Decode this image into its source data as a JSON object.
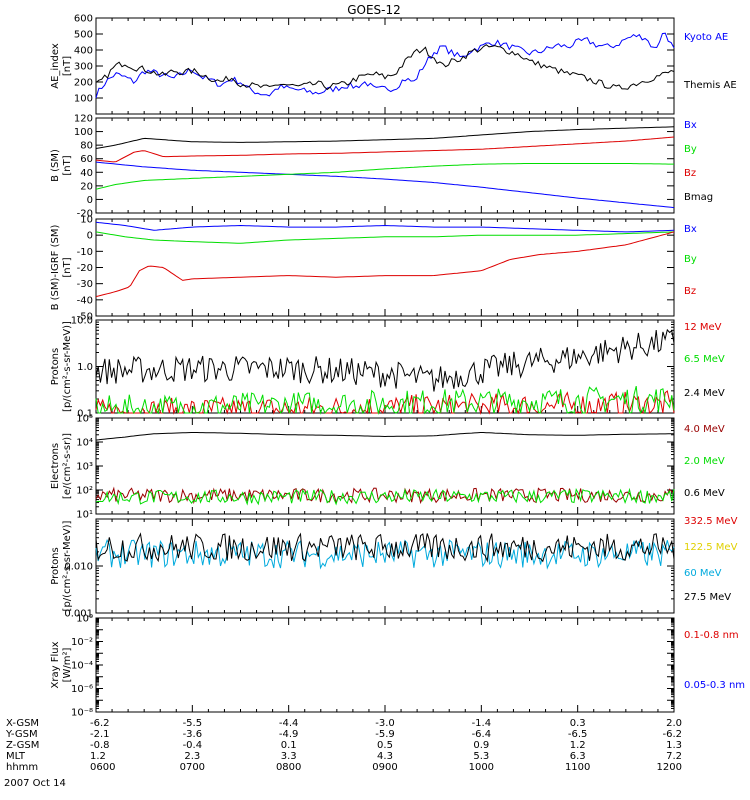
{
  "title": "GOES-12",
  "date_label": "2007 Oct 14",
  "colors": {
    "black": "#000000",
    "blue": "#0000ff",
    "red": "#dd0000",
    "green": "#00dd00",
    "cyan": "#00aadd",
    "yellow": "#eeee00",
    "darkred": "#990000"
  },
  "chart_data": [
    {
      "type": "line",
      "panel": "ae",
      "ylabel": [
        "AE_index",
        "[nT]"
      ],
      "ylim": [
        0,
        600
      ],
      "yticks": [
        100,
        200,
        300,
        400,
        500,
        600
      ],
      "scale": "linear",
      "series": [
        {
          "name": "Kyoto AE",
          "color": "#0000ff",
          "x": [
            6.0,
            6.1,
            6.2,
            6.3,
            6.4,
            6.5,
            6.6,
            6.7,
            6.8,
            6.9,
            7.0,
            7.1,
            7.2,
            7.3,
            7.4,
            7.5,
            7.6,
            7.7,
            7.8,
            7.9,
            8.0,
            8.1,
            8.2,
            8.3,
            8.4,
            8.5,
            8.6,
            8.7,
            8.8,
            8.9,
            9.0,
            9.1,
            9.2,
            9.3,
            9.4,
            9.5,
            9.6,
            9.7,
            9.8,
            9.9,
            10.0,
            10.1,
            10.2,
            10.3,
            10.4,
            10.5,
            10.6,
            10.7,
            10.8,
            10.9,
            11.0,
            11.1,
            11.2,
            11.3,
            11.4,
            11.5,
            11.6,
            11.7,
            11.8,
            11.9,
            12.0
          ],
          "y": [
            120,
            200,
            250,
            230,
            200,
            270,
            260,
            240,
            220,
            250,
            280,
            230,
            210,
            180,
            220,
            200,
            150,
            130,
            120,
            170,
            160,
            150,
            140,
            130,
            150,
            160,
            180,
            170,
            200,
            150,
            160,
            160,
            220,
            200,
            300,
            380,
            420,
            380,
            350,
            400,
            420,
            450,
            440,
            420,
            400,
            380,
            390,
            410,
            430,
            420,
            450,
            460,
            430,
            420,
            430,
            470,
            490,
            480,
            400,
            520,
            400
          ]
        },
        {
          "name": "Themis AE",
          "color": "#000000",
          "x": [
            6.0,
            6.1,
            6.2,
            6.3,
            6.4,
            6.5,
            6.6,
            6.7,
            6.8,
            6.9,
            7.0,
            7.1,
            7.2,
            7.3,
            7.4,
            7.5,
            7.6,
            7.7,
            7.8,
            7.9,
            8.0,
            8.1,
            8.2,
            8.3,
            8.4,
            8.5,
            8.6,
            8.7,
            8.8,
            8.9,
            9.0,
            9.1,
            9.2,
            9.3,
            9.4,
            9.5,
            9.6,
            9.7,
            9.8,
            9.9,
            10.0,
            10.1,
            10.2,
            10.3,
            10.4,
            10.5,
            10.6,
            10.7,
            10.8,
            10.9,
            11.0,
            11.1,
            11.2,
            11.3,
            11.4,
            11.5,
            11.6,
            11.7,
            11.8,
            11.9,
            12.0
          ],
          "y": [
            180,
            230,
            300,
            320,
            290,
            280,
            260,
            240,
            270,
            260,
            270,
            250,
            220,
            200,
            230,
            190,
            180,
            170,
            160,
            190,
            180,
            170,
            180,
            190,
            170,
            180,
            190,
            220,
            240,
            250,
            230,
            250,
            320,
            380,
            410,
            360,
            300,
            330,
            350,
            390,
            410,
            420,
            410,
            390,
            370,
            330,
            310,
            290,
            270,
            250,
            240,
            220,
            200,
            180,
            160,
            170,
            190,
            210,
            230,
            250,
            270
          ]
        }
      ],
      "legend": [
        "Kyoto AE",
        "Themis AE"
      ]
    },
    {
      "type": "line",
      "panel": "bsm",
      "ylabel": [
        "B (SM)",
        "[nT]"
      ],
      "ylim": [
        -20,
        120
      ],
      "yticks": [
        -20,
        0,
        20,
        40,
        60,
        80,
        100,
        120
      ],
      "scale": "linear",
      "series": [
        {
          "name": "Bx",
          "color": "#0000ff",
          "x": [
            6.0,
            6.5,
            7.0,
            7.5,
            8.0,
            8.5,
            9.0,
            9.5,
            10.0,
            10.5,
            11.0,
            11.5,
            12.0
          ],
          "y": [
            55,
            48,
            43,
            40,
            37,
            34,
            30,
            25,
            18,
            10,
            2,
            -5,
            -12
          ]
        },
        {
          "name": "By",
          "color": "#00dd00",
          "x": [
            6.0,
            6.2,
            6.5,
            7.0,
            7.5,
            8.0,
            8.5,
            9.0,
            9.5,
            10.0,
            10.5,
            11.0,
            11.5,
            12.0
          ],
          "y": [
            15,
            22,
            28,
            31,
            34,
            37,
            40,
            45,
            49,
            52,
            53,
            53,
            53,
            52
          ]
        },
        {
          "name": "Bz",
          "color": "#dd0000",
          "x": [
            6.0,
            6.2,
            6.4,
            6.5,
            6.7,
            7.0,
            7.5,
            8.0,
            8.5,
            9.0,
            9.5,
            10.0,
            10.5,
            11.0,
            11.5,
            12.0
          ],
          "y": [
            58,
            55,
            70,
            72,
            63,
            64,
            65,
            67,
            68,
            70,
            72,
            74,
            78,
            82,
            86,
            92
          ]
        },
        {
          "name": "Bmag",
          "color": "#000000",
          "x": [
            6.0,
            6.2,
            6.5,
            7.0,
            7.5,
            8.0,
            8.5,
            9.0,
            9.5,
            10.0,
            10.5,
            11.0,
            11.5,
            12.0
          ],
          "y": [
            75,
            80,
            90,
            85,
            84,
            85,
            86,
            88,
            90,
            95,
            100,
            103,
            105,
            107
          ]
        }
      ],
      "legend": [
        "Bx",
        "By",
        "Bz",
        "Bmag"
      ]
    },
    {
      "type": "line",
      "panel": "bsmigrf",
      "ylabel": [
        "B (SM)-IGRF (SM)",
        "[nT]"
      ],
      "ylim": [
        -50,
        10
      ],
      "yticks": [
        -50,
        -40,
        -30,
        -20,
        -10,
        0,
        10
      ],
      "scale": "linear",
      "series": [
        {
          "name": "Bx",
          "color": "#0000ff",
          "x": [
            6.0,
            6.3,
            6.6,
            7.0,
            7.5,
            8.0,
            8.5,
            9.0,
            9.5,
            10.0,
            10.5,
            11.0,
            11.5,
            12.0
          ],
          "y": [
            8,
            6,
            3,
            5,
            6,
            5,
            5,
            6,
            5,
            5,
            4,
            3,
            2,
            3
          ]
        },
        {
          "name": "By",
          "color": "#00dd00",
          "x": [
            6.0,
            6.3,
            6.6,
            7.0,
            7.5,
            8.0,
            8.5,
            9.0,
            9.5,
            10.0,
            10.5,
            11.0,
            11.5,
            12.0
          ],
          "y": [
            2,
            -1,
            -3,
            -4,
            -5,
            -3,
            -2,
            -1,
            -1,
            0,
            0,
            0,
            1,
            2
          ]
        },
        {
          "name": "Bz",
          "color": "#dd0000",
          "x": [
            6.0,
            6.2,
            6.35,
            6.45,
            6.55,
            6.7,
            6.9,
            7.0,
            7.5,
            8.0,
            8.5,
            9.0,
            9.5,
            10.0,
            10.3,
            10.6,
            11.0,
            11.5,
            12.0
          ],
          "y": [
            -38,
            -35,
            -32,
            -22,
            -19,
            -20,
            -28,
            -27,
            -26,
            -25,
            -26,
            -25,
            -25,
            -22,
            -15,
            -12,
            -10,
            -6,
            2
          ]
        }
      ],
      "legend": [
        "Bx",
        "By",
        "Bz"
      ]
    },
    {
      "type": "line",
      "panel": "protons_low",
      "ylabel": [
        "Protons",
        "[p/(cm²-s-sr-MeV)]"
      ],
      "ylim": [
        0.1,
        10
      ],
      "yticks": [
        0.1,
        1.0,
        10.0
      ],
      "ytick_labels": [
        "0.1",
        "1.0",
        "10.0"
      ],
      "scale": "log",
      "series": [
        {
          "name": "12 MeV",
          "color": "#dd0000",
          "noise": true,
          "x": [
            6.0,
            12.0
          ],
          "y": [
            0.1,
            0.15
          ]
        },
        {
          "name": "6.5 MeV",
          "color": "#00dd00",
          "noise": true,
          "x": [
            6.0,
            12.0
          ],
          "y": [
            0.12,
            0.2
          ]
        },
        {
          "name": "2.4 MeV",
          "color": "#000000",
          "noise": true,
          "x": [
            6.0,
            7.0,
            8.0,
            9.0,
            9.5,
            10.0,
            10.5,
            11.0,
            11.5,
            12.0
          ],
          "y": [
            0.8,
            0.9,
            0.9,
            0.7,
            0.5,
            0.8,
            1.2,
            1.6,
            2.5,
            3.5
          ]
        }
      ],
      "legend": [
        "12 MeV",
        "6.5 MeV",
        "2.4 MeV"
      ]
    },
    {
      "type": "line",
      "panel": "electrons",
      "ylabel": [
        "Electrons",
        "[e/(cm²-s-sr)]"
      ],
      "ylim": [
        10,
        100000
      ],
      "yticks": [
        10,
        100,
        1000,
        10000,
        100000
      ],
      "ytick_labels": [
        "10¹",
        "10²",
        "10³",
        "10⁴",
        "10⁵"
      ],
      "scale": "log",
      "series": [
        {
          "name": "4.0 MeV",
          "color": "#990000",
          "noise": true,
          "x": [
            6.0,
            12.0
          ],
          "y": [
            60,
            60
          ]
        },
        {
          "name": "2.0 MeV",
          "color": "#00dd00",
          "noise": true,
          "x": [
            6.0,
            12.0
          ],
          "y": [
            50,
            55
          ]
        },
        {
          "name": "0.6 MeV",
          "color": "#000000",
          "x": [
            6.0,
            6.3,
            6.6,
            7.0,
            7.5,
            8.0,
            8.5,
            9.0,
            9.5,
            10.0,
            10.5,
            11.0,
            11.5,
            12.0
          ],
          "y": [
            12000,
            16000,
            22000,
            25000,
            23000,
            20000,
            19000,
            17000,
            18000,
            25000,
            20000,
            19000,
            21000,
            22000
          ]
        }
      ],
      "legend": [
        "4.0 MeV",
        "2.0 MeV",
        "0.6 MeV"
      ]
    },
    {
      "type": "line",
      "panel": "protons_high",
      "ylabel": [
        "Protons",
        "[p/(cm²-s-sr-MeV)]"
      ],
      "ylim": [
        0.001,
        0.1
      ],
      "yticks": [
        0.001,
        0.01,
        0.1
      ],
      "ytick_labels": [
        "0.001",
        "0.010",
        ""
      ],
      "scale": "log",
      "series": [
        {
          "name": "332.5 MeV",
          "color": "#dd0000",
          "x": [],
          "y": []
        },
        {
          "name": "122.5 MeV",
          "color": "#eeee00",
          "x": [],
          "y": []
        },
        {
          "name": "60 MeV",
          "color": "#00aadd",
          "noise": true,
          "x": [
            6.0,
            12.0
          ],
          "y": [
            0.018,
            0.018
          ]
        },
        {
          "name": "27.5 MeV",
          "color": "#000000",
          "noise": true,
          "x": [
            6.0,
            12.0
          ],
          "y": [
            0.025,
            0.025
          ]
        }
      ],
      "legend": [
        "332.5 MeV",
        "122.5 MeV",
        "60 MeV",
        "27.5 MeV"
      ]
    },
    {
      "type": "line",
      "panel": "xray",
      "ylabel": [
        "Xray Flux",
        "[W/m²]"
      ],
      "ylim": [
        1e-08,
        1
      ],
      "yticks": [
        1e-08,
        1e-07,
        1e-06,
        1e-05,
        0.0001,
        0.001,
        0.01,
        0.1,
        1
      ],
      "ytick_labels": [
        "10⁻⁸",
        "",
        "10⁻⁶",
        "",
        "10⁻⁴",
        "",
        "10⁻²",
        "",
        "10⁰"
      ],
      "scale": "log",
      "series": [
        {
          "name": "0.1-0.8 nm",
          "color": "#dd0000",
          "x": [],
          "y": []
        },
        {
          "name": "0.05-0.3 nm",
          "color": "#0000ff",
          "x": [],
          "y": []
        }
      ],
      "legend": [
        "0.1-0.8 nm",
        "0.05-0.3 nm"
      ]
    }
  ],
  "xaxis": {
    "xlim": [
      6.0,
      12.0
    ],
    "rows": [
      {
        "label": "X-GSM",
        "values": [
          "-6.2",
          "-5.5",
          "-4.4",
          "-3.0",
          "-1.4",
          "0.3",
          "2.0"
        ]
      },
      {
        "label": "Y-GSM",
        "values": [
          "-2.1",
          "-3.6",
          "-4.9",
          "-5.9",
          "-6.4",
          "-6.5",
          "-6.2"
        ]
      },
      {
        "label": "Z-GSM",
        "values": [
          "-0.8",
          "-0.4",
          "0.1",
          "0.5",
          "0.9",
          "1.2",
          "1.3"
        ]
      },
      {
        "label": "MLT",
        "values": [
          "1.2",
          "2.3",
          "3.3",
          "4.3",
          "5.3",
          "6.3",
          "7.2"
        ]
      },
      {
        "label": "hhmm",
        "values": [
          "0600",
          "0700",
          "0800",
          "0900",
          "1000",
          "1100",
          "1200"
        ]
      }
    ]
  }
}
